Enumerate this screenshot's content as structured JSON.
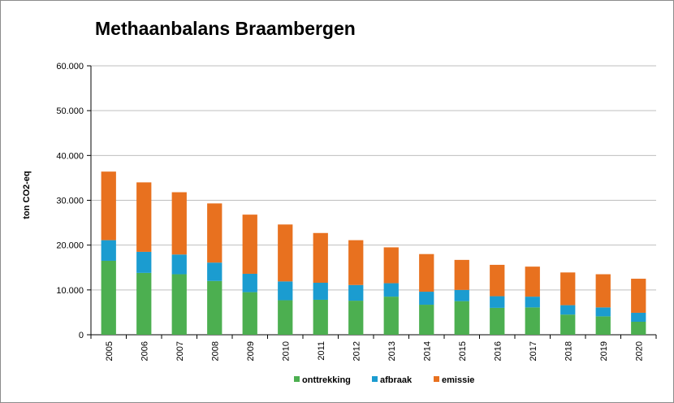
{
  "chart_data": {
    "type": "bar",
    "stacked": true,
    "title": "Methaanbalans Braambergen",
    "xlabel": "",
    "ylabel": "ton CO2-eq",
    "ylim": [
      0,
      60000
    ],
    "yticks": [
      "0",
      "10.000",
      "20.000",
      "30.000",
      "40.000",
      "50.000",
      "60.000"
    ],
    "ytick_values": [
      0,
      10000,
      20000,
      30000,
      40000,
      50000,
      60000
    ],
    "grid": true,
    "legend_position": "bottom",
    "categories": [
      "2005",
      "2006",
      "2007",
      "2008",
      "2009",
      "2010",
      "2011",
      "2012",
      "2013",
      "2014",
      "2015",
      "2016",
      "2017",
      "2018",
      "2019",
      "2020"
    ],
    "series": [
      {
        "name": "onttrekking",
        "color": "#4caf50",
        "values": [
          16500,
          13800,
          13500,
          12000,
          9500,
          7700,
          7800,
          7600,
          8500,
          6700,
          7500,
          6000,
          6100,
          4500,
          4100,
          2900
        ]
      },
      {
        "name": "afbraak",
        "color": "#1b9cd0",
        "values": [
          4600,
          4700,
          4400,
          4100,
          4100,
          4200,
          3800,
          3500,
          3000,
          2900,
          2500,
          2600,
          2400,
          2100,
          2000,
          2000
        ]
      },
      {
        "name": "emissie",
        "color": "#e8711f",
        "values": [
          15300,
          15500,
          13900,
          13200,
          13200,
          12700,
          11100,
          10000,
          8000,
          8400,
          6700,
          7000,
          6700,
          7300,
          7400,
          7600
        ]
      }
    ]
  }
}
